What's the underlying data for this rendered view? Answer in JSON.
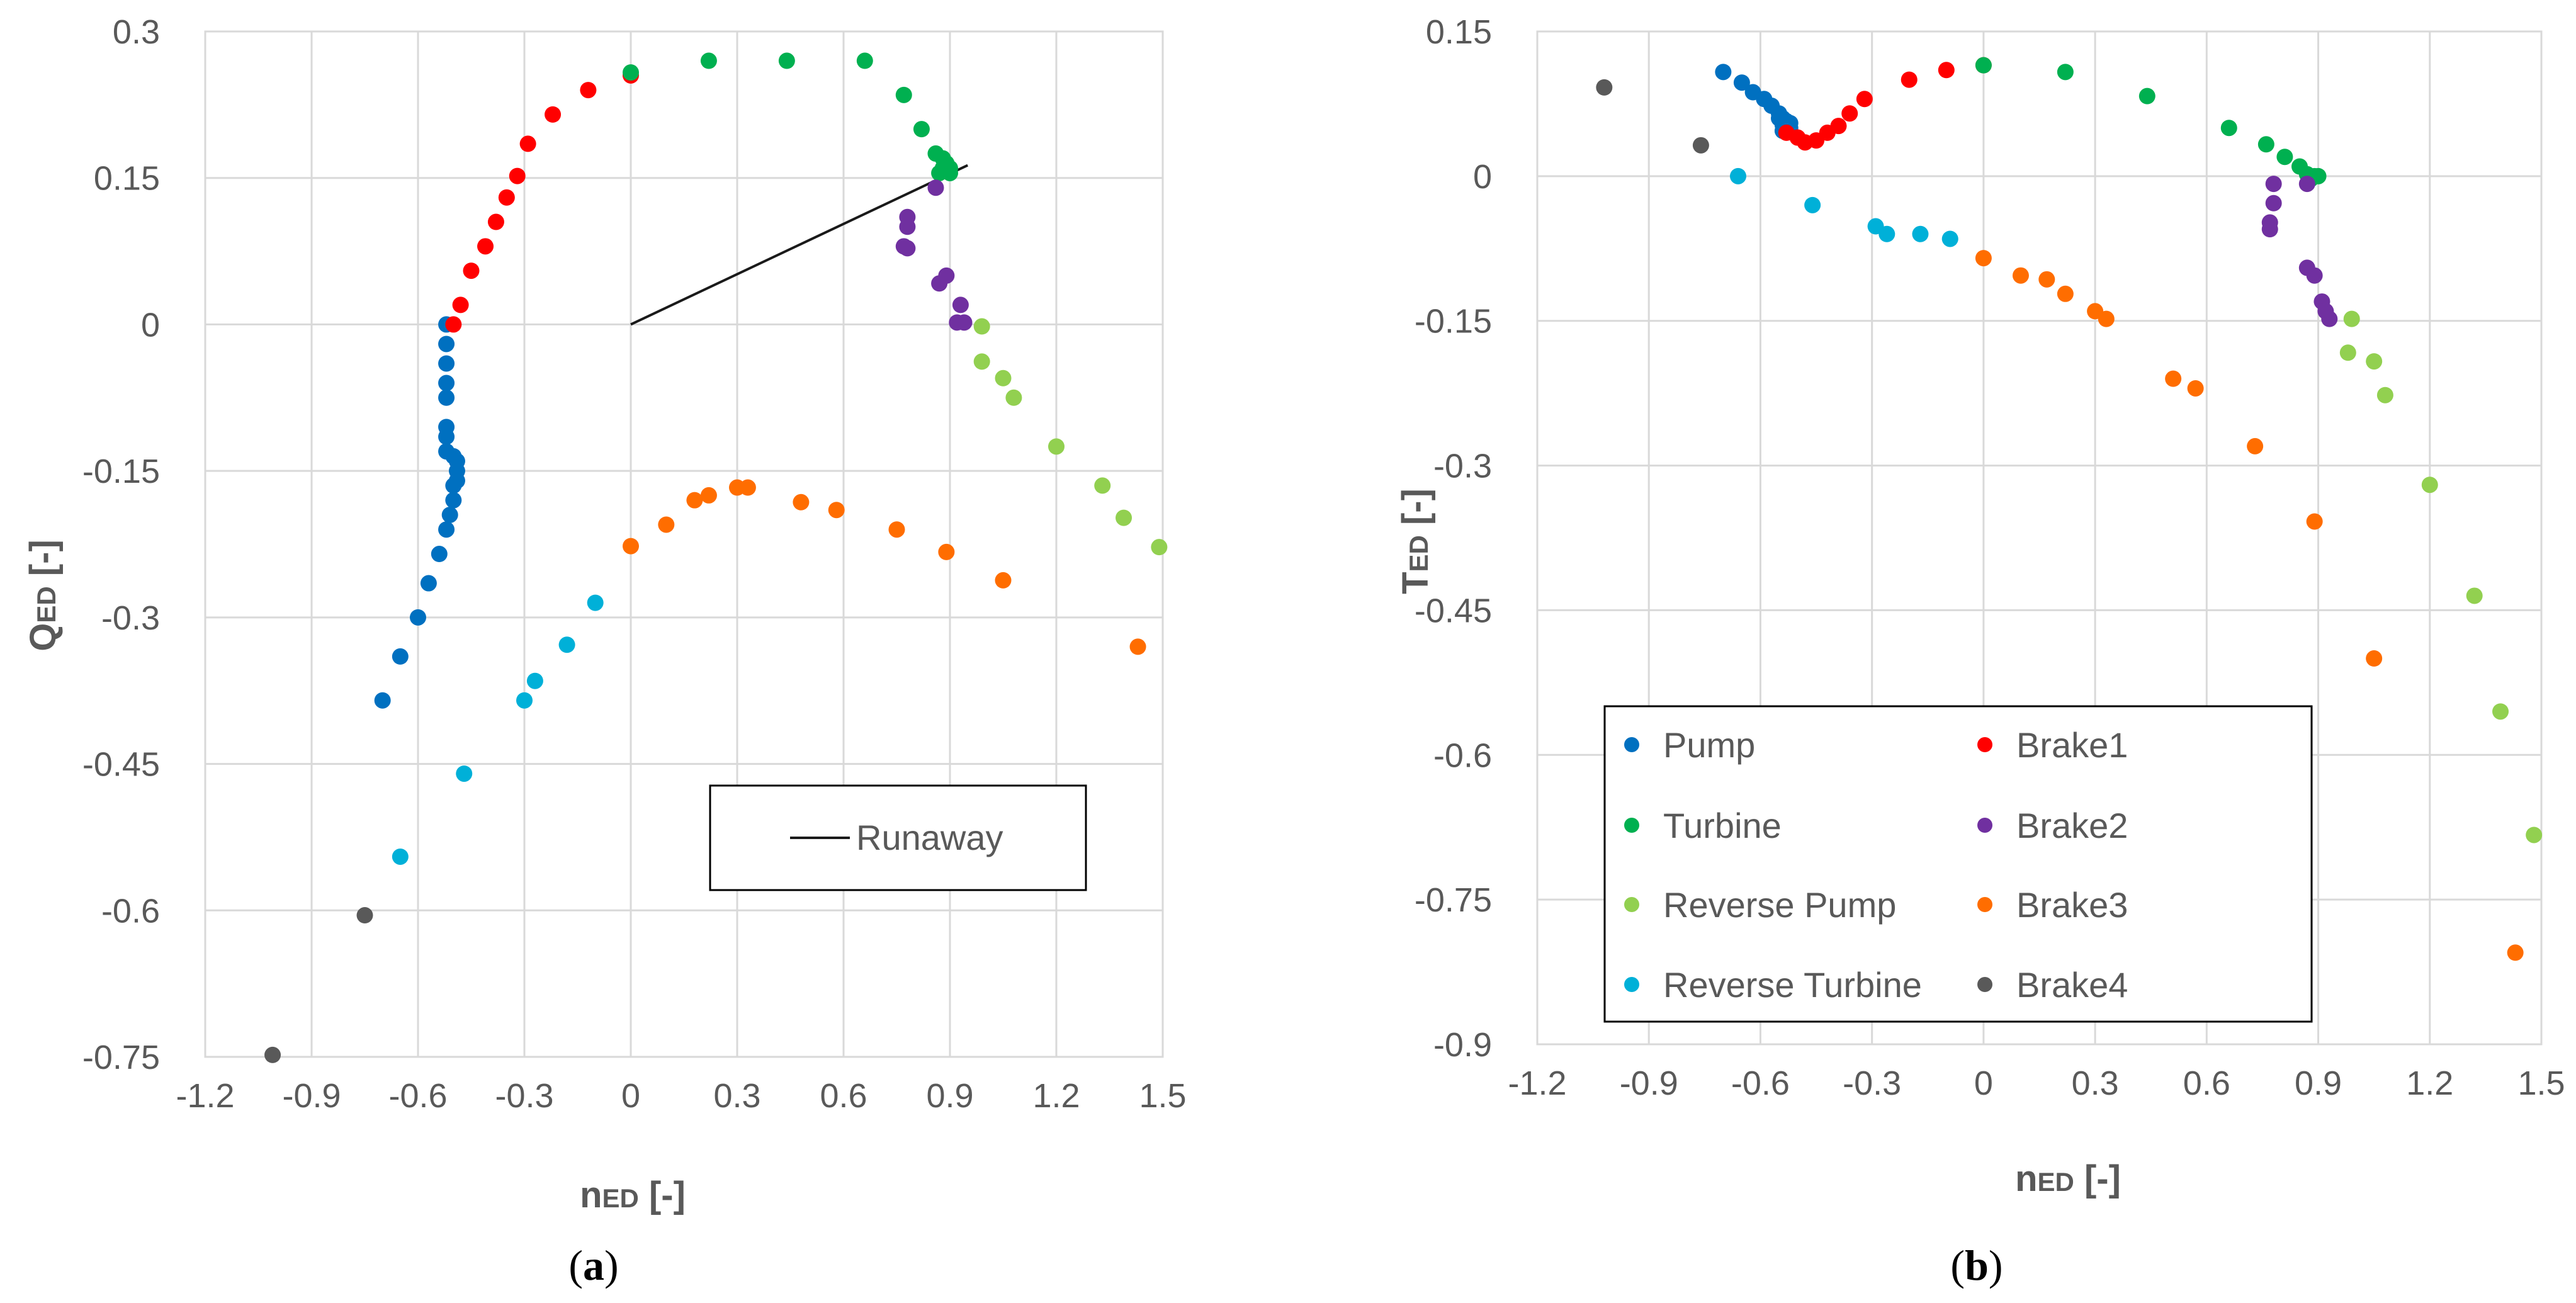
{
  "figure": {
    "caption_a_open": "(",
    "caption_a_letter": "a",
    "caption_a_close": ")",
    "caption_b_open": "(",
    "caption_b_letter": "b",
    "caption_b_close": ")"
  },
  "colors": {
    "Pump": "#0070c0",
    "Brake1": "#ff0000",
    "Turbine": "#00b050",
    "Brake2": "#7030a0",
    "Reverse Pump": "#92d050",
    "Brake3": "#ff6d00",
    "Reverse Turbine": "#00b0d8",
    "Brake4": "#595959",
    "Runaway": "#1a1a1a"
  },
  "chart_data": [
    {
      "id": "a",
      "type": "scatter",
      "ylabel_main": "Q",
      "ylabel_sub": "ED",
      "ylabel_unit": " [-]",
      "xlabel_main": "n",
      "xlabel_sub": "ED",
      "xlabel_unit": " [-]",
      "xlim": [
        -1.2,
        1.5
      ],
      "ylim": [
        -0.75,
        0.3
      ],
      "xticks": [
        "-1.2",
        "-0.9",
        "-0.6",
        "-0.3",
        "0",
        "0.3",
        "0.6",
        "0.9",
        "1.2",
        "1.5"
      ],
      "yticks": [
        "0.3",
        "0.15",
        "0",
        "-0.15",
        "-0.3",
        "-0.45",
        "-0.6",
        "-0.75"
      ],
      "legend": [
        "Runaway"
      ],
      "series": [
        {
          "name": "Pump",
          "points": [
            [
              -0.52,
              0.0
            ],
            [
              -0.52,
              -0.02
            ],
            [
              -0.52,
              -0.04
            ],
            [
              -0.52,
              -0.06
            ],
            [
              -0.52,
              -0.075
            ],
            [
              -0.52,
              -0.105
            ],
            [
              -0.52,
              -0.115
            ],
            [
              -0.52,
              -0.13
            ],
            [
              -0.5,
              -0.135
            ],
            [
              -0.49,
              -0.14
            ],
            [
              -0.49,
              -0.15
            ],
            [
              -0.49,
              -0.16
            ],
            [
              -0.5,
              -0.165
            ],
            [
              -0.5,
              -0.18
            ],
            [
              -0.51,
              -0.195
            ],
            [
              -0.52,
              -0.21
            ],
            [
              -0.54,
              -0.235
            ],
            [
              -0.57,
              -0.265
            ],
            [
              -0.6,
              -0.3
            ],
            [
              -0.65,
              -0.34
            ],
            [
              -0.7,
              -0.385
            ]
          ]
        },
        {
          "name": "Brake1",
          "points": [
            [
              -0.5,
              0.0
            ],
            [
              -0.48,
              0.02
            ],
            [
              -0.45,
              0.055
            ],
            [
              -0.41,
              0.08
            ],
            [
              -0.38,
              0.105
            ],
            [
              -0.35,
              0.13
            ],
            [
              -0.32,
              0.152
            ],
            [
              -0.29,
              0.185
            ],
            [
              -0.22,
              0.215
            ],
            [
              -0.12,
              0.24
            ],
            [
              0.0,
              0.255
            ]
          ]
        },
        {
          "name": "Turbine",
          "points": [
            [
              0.0,
              0.258
            ],
            [
              0.22,
              0.27
            ],
            [
              0.44,
              0.27
            ],
            [
              0.66,
              0.27
            ],
            [
              0.77,
              0.235
            ],
            [
              0.82,
              0.2
            ],
            [
              0.86,
              0.175
            ],
            [
              0.88,
              0.17
            ],
            [
              0.89,
              0.165
            ],
            [
              0.9,
              0.16
            ],
            [
              0.88,
              0.16
            ],
            [
              0.87,
              0.155
            ],
            [
              0.9,
              0.155
            ]
          ]
        },
        {
          "name": "Brake2",
          "points": [
            [
              0.86,
              0.14
            ],
            [
              0.78,
              0.11
            ],
            [
              0.78,
              0.1
            ],
            [
              0.77,
              0.08
            ],
            [
              0.78,
              0.078
            ],
            [
              0.89,
              0.05
            ],
            [
              0.87,
              0.042
            ],
            [
              0.93,
              0.02
            ],
            [
              0.92,
              0.002
            ],
            [
              0.94,
              0.002
            ]
          ]
        },
        {
          "name": "Reverse Pump",
          "points": [
            [
              0.99,
              -0.002
            ],
            [
              0.99,
              -0.038
            ],
            [
              1.05,
              -0.055
            ],
            [
              1.08,
              -0.075
            ],
            [
              1.2,
              -0.125
            ],
            [
              1.33,
              -0.165
            ],
            [
              1.39,
              -0.198
            ],
            [
              1.49,
              -0.228
            ]
          ]
        },
        {
          "name": "Brake3",
          "points": [
            [
              0.0,
              -0.227
            ],
            [
              0.1,
              -0.205
            ],
            [
              0.18,
              -0.18
            ],
            [
              0.22,
              -0.175
            ],
            [
              0.3,
              -0.167
            ],
            [
              0.33,
              -0.167
            ],
            [
              0.48,
              -0.182
            ],
            [
              0.58,
              -0.19
            ],
            [
              0.75,
              -0.21
            ],
            [
              0.89,
              -0.233
            ],
            [
              1.05,
              -0.262
            ],
            [
              1.43,
              -0.33
            ]
          ]
        },
        {
          "name": "Reverse Turbine",
          "points": [
            [
              -0.1,
              -0.285
            ],
            [
              -0.18,
              -0.328
            ],
            [
              -0.27,
              -0.365
            ],
            [
              -0.3,
              -0.385
            ],
            [
              -0.47,
              -0.46
            ],
            [
              -0.65,
              -0.545
            ]
          ]
        },
        {
          "name": "Brake4",
          "points": [
            [
              -0.75,
              -0.605
            ],
            [
              -1.01,
              -0.748
            ]
          ]
        }
      ],
      "lines": [
        {
          "name": "Runaway",
          "points": [
            [
              0.0,
              0.0
            ],
            [
              0.95,
              0.163
            ]
          ]
        }
      ]
    },
    {
      "id": "b",
      "type": "scatter",
      "ylabel_main": "T",
      "ylabel_sub": "ED",
      "ylabel_unit": " [-]",
      "xlabel_main": "n",
      "xlabel_sub": "ED",
      "xlabel_unit": " [-]",
      "xlim": [
        -1.2,
        1.5
      ],
      "ylim": [
        -0.9,
        0.15
      ],
      "xticks": [
        "-1.2",
        "-0.9",
        "-0.6",
        "-0.3",
        "0",
        "0.3",
        "0.6",
        "0.9",
        "1.2",
        "1.5"
      ],
      "yticks": [
        "0.15",
        "0",
        "-0.15",
        "-0.3",
        "-0.45",
        "-0.6",
        "-0.75",
        "-0.9"
      ],
      "legend": [
        "Pump",
        "Brake1",
        "Turbine",
        "Brake2",
        "Reverse Pump",
        "Brake3",
        "Reverse Turbine",
        "Brake4"
      ],
      "series": [
        {
          "name": "Pump",
          "points": [
            [
              -0.7,
              0.108
            ],
            [
              -0.65,
              0.097
            ],
            [
              -0.62,
              0.087
            ],
            [
              -0.59,
              0.08
            ],
            [
              -0.57,
              0.073
            ],
            [
              -0.55,
              0.065
            ],
            [
              -0.54,
              0.06
            ],
            [
              -0.53,
              0.057
            ],
            [
              -0.52,
              0.055
            ],
            [
              -0.52,
              0.05
            ],
            [
              -0.53,
              0.047
            ],
            [
              -0.54,
              0.047
            ],
            [
              -0.54,
              0.053
            ],
            [
              -0.55,
              0.06
            ]
          ]
        },
        {
          "name": "Brake1",
          "points": [
            [
              -0.53,
              0.045
            ],
            [
              -0.5,
              0.04
            ],
            [
              -0.48,
              0.035
            ],
            [
              -0.45,
              0.037
            ],
            [
              -0.42,
              0.045
            ],
            [
              -0.39,
              0.052
            ],
            [
              -0.36,
              0.065
            ],
            [
              -0.32,
              0.08
            ],
            [
              -0.2,
              0.1
            ],
            [
              -0.1,
              0.11
            ],
            [
              0.0,
              0.115
            ]
          ]
        },
        {
          "name": "Turbine",
          "points": [
            [
              0.0,
              0.115
            ],
            [
              0.22,
              0.108
            ],
            [
              0.44,
              0.083
            ],
            [
              0.66,
              0.05
            ],
            [
              0.76,
              0.033
            ],
            [
              0.81,
              0.02
            ],
            [
              0.85,
              0.01
            ],
            [
              0.87,
              0.002
            ],
            [
              0.88,
              -0.003
            ],
            [
              0.89,
              0.0
            ],
            [
              0.9,
              0.0
            ]
          ]
        },
        {
          "name": "Brake2",
          "points": [
            [
              0.87,
              -0.008
            ],
            [
              0.78,
              -0.008
            ],
            [
              0.78,
              -0.028
            ],
            [
              0.77,
              -0.048
            ],
            [
              0.77,
              -0.055
            ],
            [
              0.87,
              -0.095
            ],
            [
              0.89,
              -0.103
            ],
            [
              0.91,
              -0.13
            ],
            [
              0.92,
              -0.14
            ],
            [
              0.93,
              -0.148
            ]
          ]
        },
        {
          "name": "Reverse Pump",
          "points": [
            [
              0.99,
              -0.148
            ],
            [
              0.98,
              -0.183
            ],
            [
              1.05,
              -0.192
            ],
            [
              1.08,
              -0.227
            ],
            [
              1.2,
              -0.32
            ],
            [
              1.32,
              -0.435
            ],
            [
              1.39,
              -0.555
            ],
            [
              1.48,
              -0.683
            ]
          ]
        },
        {
          "name": "Brake3",
          "points": [
            [
              0.0,
              -0.085
            ],
            [
              0.1,
              -0.103
            ],
            [
              0.17,
              -0.107
            ],
            [
              0.22,
              -0.122
            ],
            [
              0.3,
              -0.14
            ],
            [
              0.33,
              -0.148
            ],
            [
              0.51,
              -0.21
            ],
            [
              0.57,
              -0.22
            ],
            [
              0.73,
              -0.28
            ],
            [
              0.89,
              -0.358
            ],
            [
              1.05,
              -0.5
            ],
            [
              1.43,
              -0.805
            ]
          ]
        },
        {
          "name": "Reverse Turbine",
          "points": [
            [
              -0.09,
              -0.065
            ],
            [
              -0.17,
              -0.06
            ],
            [
              -0.26,
              -0.06
            ],
            [
              -0.29,
              -0.052
            ],
            [
              -0.46,
              -0.03
            ],
            [
              -0.66,
              0.0
            ]
          ]
        },
        {
          "name": "Brake4",
          "points": [
            [
              -0.76,
              0.032
            ],
            [
              -1.02,
              0.092
            ]
          ]
        }
      ]
    }
  ]
}
